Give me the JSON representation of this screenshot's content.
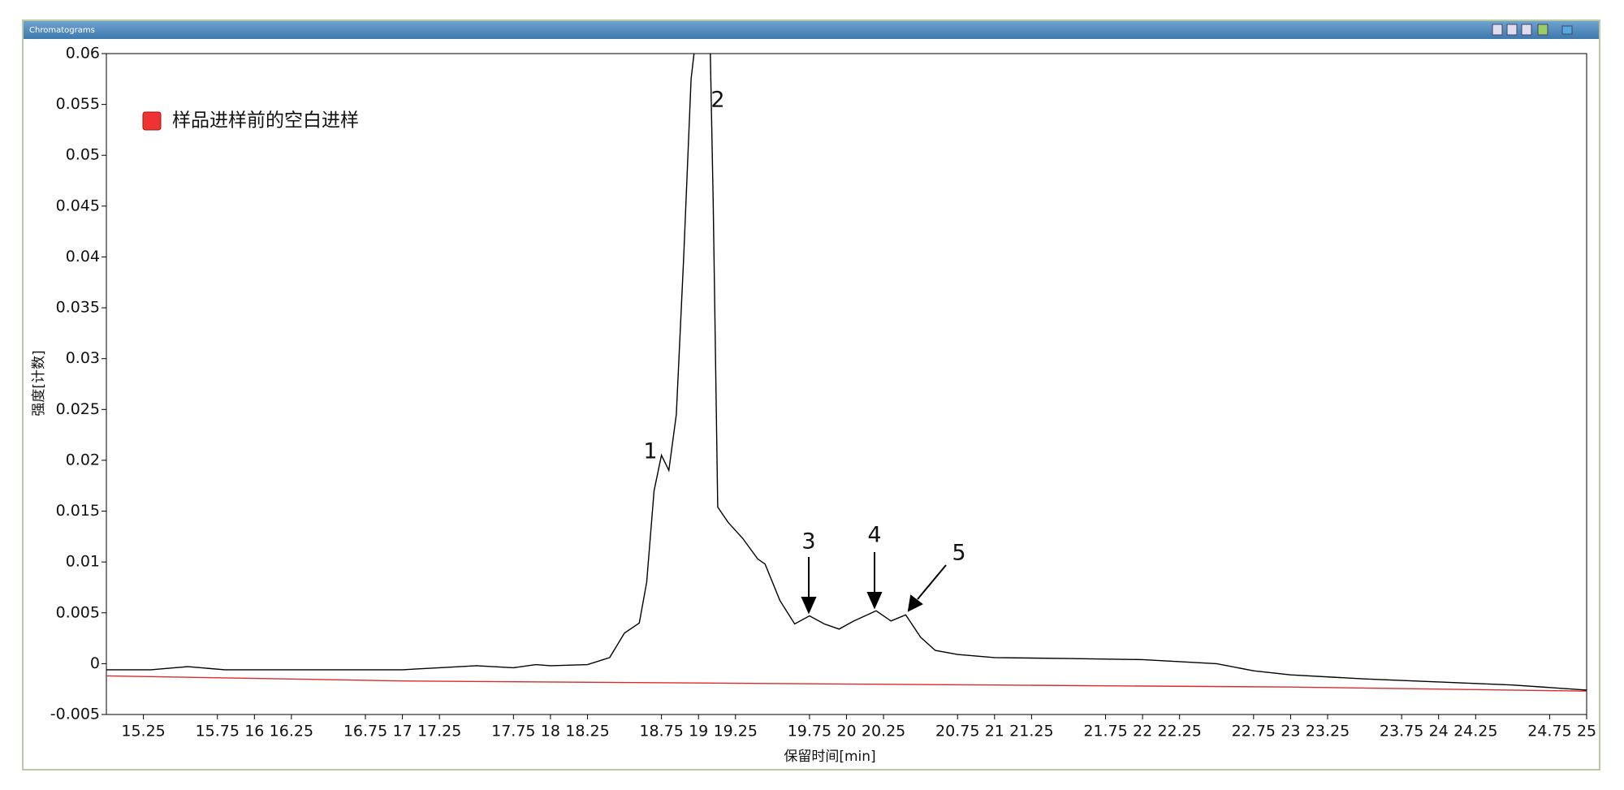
{
  "window": {
    "title": "Chromatograms"
  },
  "chart_data": {
    "type": "line",
    "xlabel": "保留时间[min]",
    "ylabel": "强度[计数]",
    "xlim": [
      15,
      25
    ],
    "ylim": [
      -0.005,
      0.06
    ],
    "xticks": [
      15.25,
      15.75,
      16,
      16.25,
      16.75,
      17,
      17.25,
      17.75,
      18,
      18.25,
      18.75,
      19,
      19.25,
      19.75,
      20,
      20.25,
      20.75,
      21,
      21.25,
      21.75,
      22,
      22.25,
      22.75,
      23,
      23.25,
      23.75,
      24,
      24.25,
      24.75,
      25
    ],
    "yticks": [
      -0.005,
      0,
      0.005,
      0.01,
      0.015,
      0.02,
      0.025,
      0.03,
      0.035,
      0.04,
      0.045,
      0.05,
      0.055,
      0.06
    ],
    "annotations": [
      "1",
      "2",
      "3",
      "4",
      "5"
    ],
    "series": [
      {
        "color": "#000000",
        "x": [
          15.0,
          15.3,
          15.55,
          15.8,
          16.0,
          16.5,
          17.0,
          17.25,
          17.5,
          17.75,
          17.9,
          18.0,
          18.25,
          18.4,
          18.5,
          18.6,
          18.65,
          18.7,
          18.75,
          18.8,
          18.85,
          18.9,
          18.95,
          18.97,
          19.02,
          19.08,
          19.1,
          19.13,
          19.2,
          19.3,
          19.4,
          19.45,
          19.55,
          19.65,
          19.75,
          19.85,
          19.95,
          20.05,
          20.2,
          20.3,
          20.4,
          20.5,
          20.6,
          20.75,
          21.0,
          21.5,
          22.0,
          22.5,
          22.75,
          23.0,
          23.5,
          24.0,
          24.5,
          25.0
        ],
        "values": [
          -0.0006,
          -0.0006,
          -0.0003,
          -0.0006,
          -0.0006,
          -0.0006,
          -0.0006,
          -0.0004,
          -0.0002,
          -0.0004,
          -0.0001,
          -0.0002,
          -0.0001,
          0.0006,
          0.003,
          0.004,
          0.008,
          0.017,
          0.0205,
          0.019,
          0.0245,
          0.04,
          0.0575,
          0.06,
          null,
          0.06,
          0.045,
          0.0154,
          0.0139,
          0.0123,
          0.0103,
          0.0098,
          0.0062,
          0.0039,
          0.0047,
          0.0039,
          0.0034,
          0.0042,
          0.0052,
          0.0042,
          0.0048,
          0.0026,
          0.0013,
          0.0009,
          0.0006,
          0.0005,
          0.0004,
          0,
          -0.0007,
          -0.0011,
          -0.0015,
          -0.0018,
          -0.0021,
          -0.0026
        ]
      },
      {
        "name": "样品进样前的空白进样",
        "color": "#d92b2b",
        "x": [
          15,
          17,
          19,
          21,
          23,
          25
        ],
        "values": [
          -0.0012,
          -0.0017,
          -0.0019,
          -0.0021,
          -0.0023,
          -0.0027
        ]
      }
    ]
  }
}
